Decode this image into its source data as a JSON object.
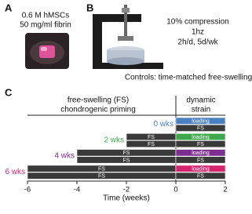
{
  "panel_a": {
    "label": "A",
    "lines": [
      "0.6 M hMSCs",
      "50 mg/ml fibrin"
    ]
  },
  "panel_b": {
    "label": "B",
    "lines": [
      "10% compression",
      "1hz",
      "2h/d, 5d/wk"
    ],
    "caption": "Controls: time-matched free-swelling"
  },
  "panel_c": {
    "label": "C",
    "header_left": [
      "free-swelling (FS)",
      "chondrogenic priming"
    ],
    "header_right": [
      "dynamic",
      "strain"
    ],
    "x_label": "Time (weeks)",
    "xlim": [
      -6,
      2
    ],
    "xticks": [
      -6,
      -4,
      -2,
      0,
      2
    ],
    "fs_color": "#3a3a3a",
    "groups": [
      {
        "name": "0 wks",
        "color": "#4a7fc1",
        "top": [
          {
            "label": "loading",
            "start": 0,
            "end": 2
          }
        ],
        "bottom": [
          {
            "label": "FS",
            "start": 0,
            "end": 2
          }
        ]
      },
      {
        "name": "2 wks",
        "color": "#3fa84a",
        "top": [
          {
            "label": "FS",
            "start": -2,
            "end": 0
          },
          {
            "label": "loading",
            "start": 0,
            "end": 2
          }
        ],
        "bottom": [
          {
            "label": "FS",
            "start": -2,
            "end": 0
          },
          {
            "label": "FS",
            "start": 0,
            "end": 2
          }
        ]
      },
      {
        "name": "4 wks",
        "color": "#7b2f8e",
        "top": [
          {
            "label": "FS",
            "start": -4,
            "end": 0
          },
          {
            "label": "loading",
            "start": 0,
            "end": 2
          }
        ],
        "bottom": [
          {
            "label": "FS",
            "start": -4,
            "end": 0
          },
          {
            "label": "FS",
            "start": 0,
            "end": 2
          }
        ]
      },
      {
        "name": "6 wks",
        "color": "#d6246e",
        "top": [
          {
            "label": "FS",
            "start": -6,
            "end": 0
          },
          {
            "label": "loading",
            "start": 0,
            "end": 2
          }
        ],
        "bottom": [
          {
            "label": "FS",
            "start": -6,
            "end": 0
          },
          {
            "label": "FS",
            "start": 0,
            "end": 2
          }
        ]
      }
    ]
  }
}
